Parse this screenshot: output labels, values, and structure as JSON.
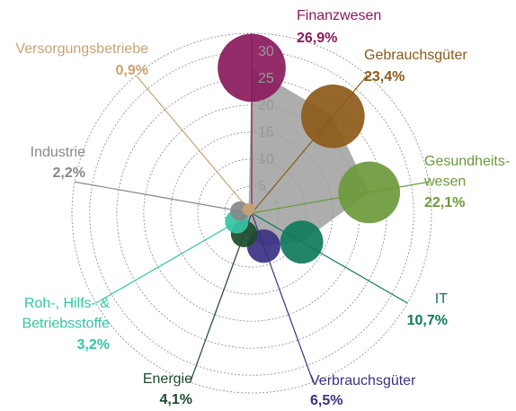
{
  "chart_data": {
    "type": "radar-bubble",
    "categories": [
      "Finanzwesen",
      "Gebrauchsgüter",
      "Gesundheits-\nwesen",
      "IT",
      "Verbrauchsgüter",
      "Energie",
      "Roh-, Hilfs- &\nBetriebsstoffe",
      "Industrie",
      "Versorgungsbetriebe"
    ],
    "values": [
      26.9,
      23.4,
      22.1,
      10.7,
      6.5,
      4.1,
      3.2,
      2.2,
      0.9
    ],
    "value_labels": [
      "26,9%",
      "23,4%",
      "22,1%",
      "10,7%",
      "6,5%",
      "4,1%",
      "3,2%",
      "2,2%",
      "0,9%"
    ],
    "colors": [
      "#8a1a5c",
      "#8c5a18",
      "#6b9a3a",
      "#0f7a5c",
      "#3a3183",
      "#1d4a2c",
      "#33c4a4",
      "#888888",
      "#c9a273"
    ],
    "polygon_color": "#999999",
    "rlim": [
      0,
      33.3
    ],
    "rticks": [
      5,
      10,
      15,
      20,
      25,
      30
    ]
  }
}
